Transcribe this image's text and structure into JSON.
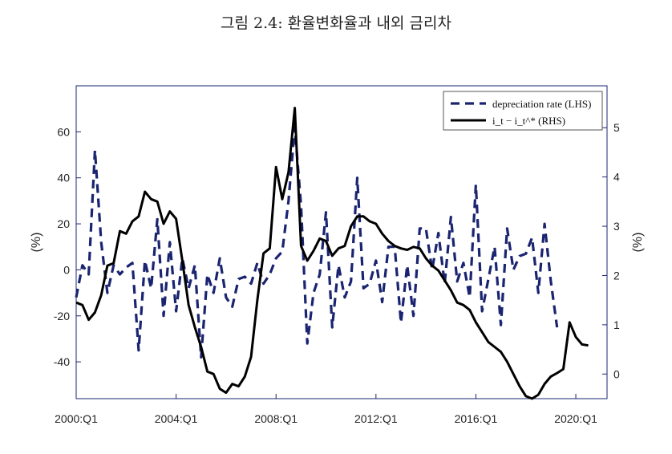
{
  "figure": {
    "title": "그림 2.4: 환율변화율과 내외 금리차"
  },
  "chart_data": {
    "type": "line",
    "xlabel": "",
    "ylabel_left": "(%)",
    "ylabel_right": "(%)",
    "x_ticks": [
      "2000:Q1",
      "2004:Q1",
      "2008:Q1",
      "2012:Q1",
      "2016:Q1",
      "2020:Q1"
    ],
    "x_range": [
      2000.0,
      2021.25
    ],
    "ylim_left": [
      -56,
      80
    ],
    "yticks_left": [
      -40,
      -20,
      0,
      20,
      40,
      60
    ],
    "ylim_right": [
      -0.5,
      5.85
    ],
    "yticks_right": [
      0,
      1,
      2,
      3,
      4,
      5
    ],
    "grid": false,
    "legend_position": "top-right",
    "colors": {
      "depreciation": "#1a2470",
      "differential": "#000000",
      "left_axis": "#1a2470",
      "right_axis": "#222222"
    },
    "series": [
      {
        "name": "depreciation rate (LHS)",
        "axis": "left",
        "style": "dashed",
        "values": [
          {
            "x": "2000:Q1",
            "y": -12
          },
          {
            "x": "2000:Q2",
            "y": 2
          },
          {
            "x": "2000:Q3",
            "y": -2
          },
          {
            "x": "2000:Q4",
            "y": 52
          },
          {
            "x": "2001:Q1",
            "y": 12
          },
          {
            "x": "2001:Q2",
            "y": -10
          },
          {
            "x": "2001:Q3",
            "y": 2
          },
          {
            "x": "2001:Q4",
            "y": -2
          },
          {
            "x": "2002:Q1",
            "y": 1
          },
          {
            "x": "2002:Q2",
            "y": 3
          },
          {
            "x": "2002:Q3",
            "y": -35
          },
          {
            "x": "2002:Q4",
            "y": 4
          },
          {
            "x": "2003:Q1",
            "y": -8
          },
          {
            "x": "2003:Q2",
            "y": 22
          },
          {
            "x": "2003:Q3",
            "y": -20
          },
          {
            "x": "2003:Q4",
            "y": 12
          },
          {
            "x": "2004:Q1",
            "y": -18
          },
          {
            "x": "2004:Q2",
            "y": 5
          },
          {
            "x": "2004:Q3",
            "y": -8
          },
          {
            "x": "2004:Q4",
            "y": 2
          },
          {
            "x": "2005:Q1",
            "y": -38
          },
          {
            "x": "2005:Q2",
            "y": -2
          },
          {
            "x": "2005:Q3",
            "y": -10
          },
          {
            "x": "2005:Q4",
            "y": 5
          },
          {
            "x": "2006:Q1",
            "y": -12
          },
          {
            "x": "2006:Q2",
            "y": -16
          },
          {
            "x": "2006:Q3",
            "y": -4
          },
          {
            "x": "2006:Q4",
            "y": -3
          },
          {
            "x": "2007:Q1",
            "y": -6
          },
          {
            "x": "2007:Q2",
            "y": 3
          },
          {
            "x": "2007:Q3",
            "y": -6
          },
          {
            "x": "2007:Q4",
            "y": -2
          },
          {
            "x": "2008:Q1",
            "y": 5
          },
          {
            "x": "2008:Q2",
            "y": 8
          },
          {
            "x": "2008:Q3",
            "y": 30
          },
          {
            "x": "2008:Q4",
            "y": 62
          },
          {
            "x": "2009:Q1",
            "y": 28
          },
          {
            "x": "2009:Q2",
            "y": -32
          },
          {
            "x": "2009:Q3",
            "y": -10
          },
          {
            "x": "2009:Q4",
            "y": -2
          },
          {
            "x": "2010:Q1",
            "y": 25
          },
          {
            "x": "2010:Q2",
            "y": -25
          },
          {
            "x": "2010:Q3",
            "y": 2
          },
          {
            "x": "2010:Q4",
            "y": -12
          },
          {
            "x": "2011:Q1",
            "y": -5
          },
          {
            "x": "2011:Q2",
            "y": 40
          },
          {
            "x": "2011:Q3",
            "y": -8
          },
          {
            "x": "2011:Q4",
            "y": -6
          },
          {
            "x": "2012:Q1",
            "y": 4
          },
          {
            "x": "2012:Q2",
            "y": -14
          },
          {
            "x": "2012:Q3",
            "y": 10
          },
          {
            "x": "2012:Q4",
            "y": 10
          },
          {
            "x": "2013:Q1",
            "y": -23
          },
          {
            "x": "2013:Q2",
            "y": 2
          },
          {
            "x": "2013:Q3",
            "y": -20
          },
          {
            "x": "2013:Q4",
            "y": 18
          },
          {
            "x": "2014:Q1",
            "y": 18
          },
          {
            "x": "2014:Q2",
            "y": 0
          },
          {
            "x": "2014:Q3",
            "y": 16
          },
          {
            "x": "2014:Q4",
            "y": -6
          },
          {
            "x": "2015:Q1",
            "y": 23
          },
          {
            "x": "2015:Q2",
            "y": -5
          },
          {
            "x": "2015:Q3",
            "y": 3
          },
          {
            "x": "2015:Q4",
            "y": -12
          },
          {
            "x": "2016:Q1",
            "y": 37
          },
          {
            "x": "2016:Q2",
            "y": -18
          },
          {
            "x": "2016:Q3",
            "y": -4
          },
          {
            "x": "2016:Q4",
            "y": 10
          },
          {
            "x": "2017:Q1",
            "y": -24
          },
          {
            "x": "2017:Q2",
            "y": 18
          },
          {
            "x": "2017:Q3",
            "y": 0
          },
          {
            "x": "2017:Q4",
            "y": 6
          },
          {
            "x": "2018:Q1",
            "y": 7
          },
          {
            "x": "2018:Q2",
            "y": 14
          },
          {
            "x": "2018:Q3",
            "y": -10
          },
          {
            "x": "2018:Q4",
            "y": 20
          },
          {
            "x": "2019:Q1",
            "y": -5
          },
          {
            "x": "2019:Q2",
            "y": -25
          }
        ]
      },
      {
        "name": "i_t − i_t^* (RHS)",
        "axis": "right",
        "style": "solid",
        "values": [
          {
            "x": "2000:Q1",
            "y": 1.45
          },
          {
            "x": "2000:Q2",
            "y": 1.4
          },
          {
            "x": "2000:Q3",
            "y": 1.1
          },
          {
            "x": "2000:Q4",
            "y": 1.25
          },
          {
            "x": "2001:Q1",
            "y": 1.6
          },
          {
            "x": "2001:Q2",
            "y": 2.2
          },
          {
            "x": "2001:Q3",
            "y": 2.25
          },
          {
            "x": "2001:Q4",
            "y": 2.9
          },
          {
            "x": "2002:Q1",
            "y": 2.85
          },
          {
            "x": "2002:Q2",
            "y": 3.1
          },
          {
            "x": "2002:Q3",
            "y": 3.2
          },
          {
            "x": "2002:Q4",
            "y": 3.7
          },
          {
            "x": "2003:Q1",
            "y": 3.55
          },
          {
            "x": "2003:Q2",
            "y": 3.5
          },
          {
            "x": "2003:Q3",
            "y": 3.05
          },
          {
            "x": "2003:Q4",
            "y": 3.3
          },
          {
            "x": "2004:Q1",
            "y": 3.15
          },
          {
            "x": "2004:Q2",
            "y": 2.3
          },
          {
            "x": "2004:Q3",
            "y": 1.4
          },
          {
            "x": "2004:Q4",
            "y": 0.95
          },
          {
            "x": "2005:Q1",
            "y": 0.55
          },
          {
            "x": "2005:Q2",
            "y": 0.05
          },
          {
            "x": "2005:Q3",
            "y": 0.0
          },
          {
            "x": "2005:Q4",
            "y": -0.3
          },
          {
            "x": "2006:Q1",
            "y": -0.38
          },
          {
            "x": "2006:Q2",
            "y": -0.2
          },
          {
            "x": "2006:Q3",
            "y": -0.25
          },
          {
            "x": "2006:Q4",
            "y": -0.05
          },
          {
            "x": "2007:Q1",
            "y": 0.35
          },
          {
            "x": "2007:Q2",
            "y": 1.5
          },
          {
            "x": "2007:Q3",
            "y": 2.45
          },
          {
            "x": "2007:Q4",
            "y": 2.55
          },
          {
            "x": "2008:Q1",
            "y": 4.2
          },
          {
            "x": "2008:Q2",
            "y": 3.55
          },
          {
            "x": "2008:Q3",
            "y": 4.1
          },
          {
            "x": "2008:Q4",
            "y": 5.4
          },
          {
            "x": "2009:Q1",
            "y": 2.6
          },
          {
            "x": "2009:Q2",
            "y": 2.3
          },
          {
            "x": "2009:Q3",
            "y": 2.5
          },
          {
            "x": "2009:Q4",
            "y": 2.75
          },
          {
            "x": "2010:Q1",
            "y": 2.7
          },
          {
            "x": "2010:Q2",
            "y": 2.4
          },
          {
            "x": "2010:Q3",
            "y": 2.55
          },
          {
            "x": "2010:Q4",
            "y": 2.6
          },
          {
            "x": "2011:Q1",
            "y": 3.0
          },
          {
            "x": "2011:Q2",
            "y": 3.2
          },
          {
            "x": "2011:Q3",
            "y": 3.2
          },
          {
            "x": "2011:Q4",
            "y": 3.1
          },
          {
            "x": "2012:Q1",
            "y": 3.05
          },
          {
            "x": "2012:Q2",
            "y": 2.85
          },
          {
            "x": "2012:Q3",
            "y": 2.7
          },
          {
            "x": "2012:Q4",
            "y": 2.6
          },
          {
            "x": "2013:Q1",
            "y": 2.55
          },
          {
            "x": "2013:Q2",
            "y": 2.52
          },
          {
            "x": "2013:Q3",
            "y": 2.58
          },
          {
            "x": "2013:Q4",
            "y": 2.55
          },
          {
            "x": "2014:Q1",
            "y": 2.35
          },
          {
            "x": "2014:Q2",
            "y": 2.2
          },
          {
            "x": "2014:Q3",
            "y": 2.1
          },
          {
            "x": "2014:Q4",
            "y": 1.9
          },
          {
            "x": "2015:Q1",
            "y": 1.7
          },
          {
            "x": "2015:Q2",
            "y": 1.45
          },
          {
            "x": "2015:Q3",
            "y": 1.4
          },
          {
            "x": "2015:Q4",
            "y": 1.3
          },
          {
            "x": "2016:Q1",
            "y": 1.05
          },
          {
            "x": "2016:Q2",
            "y": 0.85
          },
          {
            "x": "2016:Q3",
            "y": 0.65
          },
          {
            "x": "2016:Q4",
            "y": 0.55
          },
          {
            "x": "2017:Q1",
            "y": 0.45
          },
          {
            "x": "2017:Q2",
            "y": 0.25
          },
          {
            "x": "2017:Q3",
            "y": 0.0
          },
          {
            "x": "2017:Q4",
            "y": -0.25
          },
          {
            "x": "2018:Q1",
            "y": -0.45
          },
          {
            "x": "2018:Q2",
            "y": -0.5
          },
          {
            "x": "2018:Q3",
            "y": -0.42
          },
          {
            "x": "2018:Q4",
            "y": -0.2
          },
          {
            "x": "2019:Q1",
            "y": -0.05
          },
          {
            "x": "2019:Q2",
            "y": 0.02
          },
          {
            "x": "2019:Q3",
            "y": 0.1
          },
          {
            "x": "2019:Q4",
            "y": 1.05
          },
          {
            "x": "2020:Q1",
            "y": 0.75
          },
          {
            "x": "2020:Q2",
            "y": 0.6
          },
          {
            "x": "2020:Q3",
            "y": 0.58
          }
        ]
      }
    ]
  }
}
